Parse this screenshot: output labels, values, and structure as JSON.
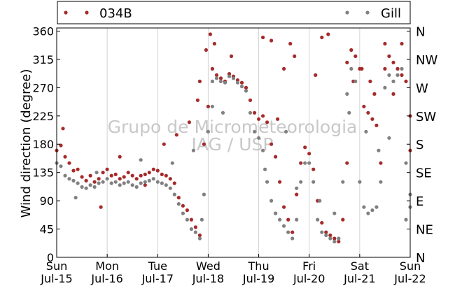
{
  "chart_data": {
    "type": "scatter",
    "title": "",
    "xlabel": "",
    "ylabel": "Wind direction (degree)",
    "ylim": [
      0,
      365
    ],
    "xlim_days": [
      "2015-07-15T00:00",
      "2015-07-22T00:00"
    ],
    "y_ticks": [
      0,
      45,
      90,
      135,
      180,
      225,
      270,
      315,
      360
    ],
    "y2_ticks": [
      {
        "value": 0,
        "label": "N"
      },
      {
        "value": 45,
        "label": "NE"
      },
      {
        "value": 90,
        "label": "E"
      },
      {
        "value": 135,
        "label": "SE"
      },
      {
        "value": 180,
        "label": "S"
      },
      {
        "value": 225,
        "label": "SW"
      },
      {
        "value": 270,
        "label": "W"
      },
      {
        "value": 315,
        "label": "NW"
      },
      {
        "value": 360,
        "label": "N"
      }
    ],
    "x_ticks": [
      {
        "date": "2015-07-15",
        "day": "Sun",
        "label": "Jul-15"
      },
      {
        "date": "2015-07-16",
        "day": "Mon",
        "label": "Jul-16"
      },
      {
        "date": "2015-07-17",
        "day": "Tue",
        "label": "Jul-17"
      },
      {
        "date": "2015-07-18",
        "day": "Wed",
        "label": "Jul-18"
      },
      {
        "date": "2015-07-19",
        "day": "Thu",
        "label": "Jul-19"
      },
      {
        "date": "2015-07-20",
        "day": "Fri",
        "label": "Jul-20"
      },
      {
        "date": "2015-07-21",
        "day": "Sat",
        "label": "Jul-21"
      },
      {
        "date": "2015-07-22",
        "day": "Sun",
        "label": "Jul-22"
      }
    ],
    "grid": "vertical",
    "legend": "top",
    "watermark": [
      "Grupo de Micrometeorologia",
      "IAG / USP"
    ],
    "series": [
      {
        "name": "034B",
        "color": "#a52a2a",
        "x": [
          "2015-07-15T00:00",
          "2015-07-15T02:00",
          "2015-07-15T04:00",
          "2015-07-15T06:00",
          "2015-07-15T08:00",
          "2015-07-15T10:00",
          "2015-07-15T12:00",
          "2015-07-15T14:00",
          "2015-07-15T16:00",
          "2015-07-15T18:00",
          "2015-07-15T20:00",
          "2015-07-15T22:00",
          "2015-07-16T00:00",
          "2015-07-16T02:00",
          "2015-07-16T04:00",
          "2015-07-16T06:00",
          "2015-07-16T08:00",
          "2015-07-16T10:00",
          "2015-07-16T12:00",
          "2015-07-16T14:00",
          "2015-07-16T16:00",
          "2015-07-16T18:00",
          "2015-07-16T20:00",
          "2015-07-16T22:00",
          "2015-07-17T00:00",
          "2015-07-17T02:00",
          "2015-07-17T04:00",
          "2015-07-17T06:00",
          "2015-07-17T08:00",
          "2015-07-17T10:00",
          "2015-07-17T12:00",
          "2015-07-17T14:00",
          "2015-07-17T16:00",
          "2015-07-17T18:00",
          "2015-07-17T20:00",
          "2015-07-17T22:00",
          "2015-07-18T00:00",
          "2015-07-18T02:00",
          "2015-07-18T04:00",
          "2015-07-18T06:00",
          "2015-07-18T08:00",
          "2015-07-18T10:00",
          "2015-07-18T12:00",
          "2015-07-18T14:00",
          "2015-07-18T16:00",
          "2015-07-18T18:00",
          "2015-07-18T20:00",
          "2015-07-18T22:00",
          "2015-07-19T00:00",
          "2015-07-19T02:00",
          "2015-07-19T04:00",
          "2015-07-19T06:00",
          "2015-07-19T08:00",
          "2015-07-19T10:00",
          "2015-07-19T12:00",
          "2015-07-19T14:00",
          "2015-07-19T16:00",
          "2015-07-19T18:00",
          "2015-07-19T20:00",
          "2015-07-19T22:00",
          "2015-07-20T00:00",
          "2015-07-20T02:00",
          "2015-07-20T04:00",
          "2015-07-20T06:00",
          "2015-07-20T08:00",
          "2015-07-20T10:00",
          "2015-07-20T12:00",
          "2015-07-20T14:00",
          "2015-07-20T16:00",
          "2015-07-20T18:00",
          "2015-07-20T20:00",
          "2015-07-20T22:00",
          "2015-07-21T00:00",
          "2015-07-21T02:00",
          "2015-07-21T04:00",
          "2015-07-21T06:00",
          "2015-07-21T08:00",
          "2015-07-21T10:00",
          "2015-07-21T12:00",
          "2015-07-21T14:00",
          "2015-07-21T16:00",
          "2015-07-21T18:00",
          "2015-07-21T20:00",
          "2015-07-21T22:00",
          "2015-07-22T00:00"
        ],
        "y": [
          170,
          178,
          160,
          150,
          138,
          140,
          128,
          122,
          130,
          120,
          125,
          135,
          140,
          130,
          132,
          125,
          128,
          135,
          130,
          125,
          130,
          132,
          135,
          140,
          138,
          132,
          130,
          125,
          118,
          95,
          82,
          75,
          60,
          48,
          35,
          180,
          240,
          300,
          290,
          285,
          280,
          292,
          288,
          282,
          278,
          270,
          250,
          230,
          220,
          225,
          215,
          180,
          160,
          120,
          80,
          60,
          40,
          100,
          150,
          175,
          165,
          140,
          90,
          55,
          40,
          35,
          30,
          25,
          60,
          310,
          330,
          320,
          300,
          240,
          230,
          220,
          210,
          150,
          300,
          320,
          310,
          300,
          290,
          280,
          225
        ],
        "outliers_x": [
          "2015-07-15T03:00",
          "2015-07-15T21:00",
          "2015-07-16T06:00",
          "2015-07-16T18:00",
          "2015-07-17T03:00",
          "2015-07-17T09:00",
          "2015-07-17T15:00",
          "2015-07-17T19:00",
          "2015-07-17T20:00",
          "2015-07-17T23:00",
          "2015-07-18T01:00",
          "2015-07-18T03:00",
          "2015-07-18T11:00",
          "2015-07-19T02:00",
          "2015-07-19T06:00",
          "2015-07-19T09:00",
          "2015-07-19T12:00",
          "2015-07-19T15:00",
          "2015-07-19T17:00",
          "2015-07-20T03:00",
          "2015-07-20T06:00",
          "2015-07-20T09:00",
          "2015-07-20T18:00",
          "2015-07-20T21:00",
          "2015-07-21T01:00",
          "2015-07-21T05:00",
          "2015-07-21T07:00",
          "2015-07-21T12:00",
          "2015-07-21T16:00",
          "2015-07-21T20:00",
          "2015-07-22T00:00"
        ],
        "outliers_y": [
          205,
          80,
          160,
          115,
          180,
          195,
          215,
          250,
          280,
          330,
          355,
          340,
          320,
          350,
          345,
          220,
          300,
          340,
          320,
          290,
          350,
          355,
          150,
          280,
          300,
          280,
          260,
          340,
          260,
          340,
          170
        ]
      },
      {
        "name": "Gill",
        "color": "#808080",
        "x": [
          "2015-07-15T00:00",
          "2015-07-15T02:00",
          "2015-07-15T04:00",
          "2015-07-15T06:00",
          "2015-07-15T08:00",
          "2015-07-15T10:00",
          "2015-07-15T12:00",
          "2015-07-15T14:00",
          "2015-07-15T16:00",
          "2015-07-15T18:00",
          "2015-07-15T20:00",
          "2015-07-15T22:00",
          "2015-07-16T00:00",
          "2015-07-16T02:00",
          "2015-07-16T04:00",
          "2015-07-16T06:00",
          "2015-07-16T08:00",
          "2015-07-16T10:00",
          "2015-07-16T12:00",
          "2015-07-16T14:00",
          "2015-07-16T16:00",
          "2015-07-16T18:00",
          "2015-07-16T20:00",
          "2015-07-16T22:00",
          "2015-07-17T00:00",
          "2015-07-17T02:00",
          "2015-07-17T04:00",
          "2015-07-17T06:00",
          "2015-07-17T08:00",
          "2015-07-17T10:00",
          "2015-07-17T12:00",
          "2015-07-17T14:00",
          "2015-07-17T16:00",
          "2015-07-17T18:00",
          "2015-07-17T20:00",
          "2015-07-17T22:00",
          "2015-07-18T00:00",
          "2015-07-18T02:00",
          "2015-07-18T04:00",
          "2015-07-18T06:00",
          "2015-07-18T08:00",
          "2015-07-18T10:00",
          "2015-07-18T12:00",
          "2015-07-18T14:00",
          "2015-07-18T16:00",
          "2015-07-18T18:00",
          "2015-07-18T20:00",
          "2015-07-18T22:00",
          "2015-07-19T00:00",
          "2015-07-19T02:00",
          "2015-07-19T04:00",
          "2015-07-19T06:00",
          "2015-07-19T08:00",
          "2015-07-19T10:00",
          "2015-07-19T12:00",
          "2015-07-19T14:00",
          "2015-07-19T16:00",
          "2015-07-19T18:00",
          "2015-07-19T20:00",
          "2015-07-19T22:00",
          "2015-07-20T00:00",
          "2015-07-20T02:00",
          "2015-07-20T04:00",
          "2015-07-20T06:00",
          "2015-07-20T08:00",
          "2015-07-20T10:00",
          "2015-07-20T12:00",
          "2015-07-20T14:00",
          "2015-07-20T16:00",
          "2015-07-20T18:00",
          "2015-07-20T20:00",
          "2015-07-20T22:00",
          "2015-07-21T00:00",
          "2015-07-21T02:00",
          "2015-07-21T04:00",
          "2015-07-21T06:00",
          "2015-07-21T08:00",
          "2015-07-21T10:00",
          "2015-07-21T12:00",
          "2015-07-21T14:00",
          "2015-07-21T16:00",
          "2015-07-21T18:00",
          "2015-07-21T20:00",
          "2015-07-21T22:00",
          "2015-07-22T00:00"
        ],
        "y": [
          150,
          145,
          130,
          125,
          122,
          118,
          112,
          110,
          115,
          112,
          118,
          120,
          125,
          118,
          120,
          115,
          118,
          120,
          115,
          112,
          118,
          120,
          122,
          125,
          120,
          118,
          115,
          110,
          100,
          85,
          70,
          60,
          45,
          40,
          30,
          100,
          200,
          280,
          285,
          280,
          278,
          288,
          285,
          278,
          272,
          265,
          230,
          200,
          190,
          170,
          120,
          90,
          70,
          60,
          50,
          40,
          30,
          60,
          120,
          150,
          150,
          120,
          60,
          40,
          35,
          30,
          25,
          30,
          120,
          260,
          300,
          280,
          120,
          80,
          70,
          75,
          80,
          120,
          270,
          290,
          280,
          290,
          300,
          150,
          100
        ],
        "outliers_x": [
          "2015-07-15T09:00",
          "2015-07-15T19:00",
          "2015-07-16T16:00",
          "2015-07-17T07:00",
          "2015-07-17T17:00",
          "2015-07-17T21:00",
          "2015-07-18T02:00",
          "2015-07-18T07:00",
          "2015-07-19T03:00",
          "2015-07-19T08:00",
          "2015-07-19T13:00",
          "2015-07-19T18:00",
          "2015-07-20T05:00",
          "2015-07-20T12:00",
          "2015-07-20T19:00",
          "2015-07-21T03:00",
          "2015-07-21T09:00",
          "2015-07-21T14:00",
          "2015-07-21T22:00",
          "2015-07-22T00:00"
        ],
        "outliers_y": [
          95,
          135,
          155,
          150,
          170,
          60,
          240,
          230,
          140,
          70,
          200,
          110,
          90,
          70,
          230,
          200,
          170,
          190,
          60,
          80
        ]
      }
    ]
  }
}
